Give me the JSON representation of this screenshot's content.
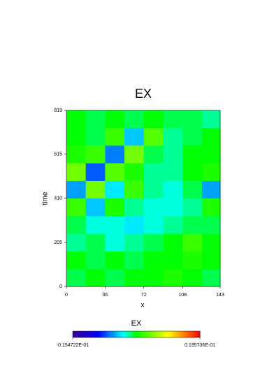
{
  "chart_data": {
    "type": "heatmap",
    "title": "EX",
    "xlabel": "x",
    "ylabel": "time",
    "xlim": [
      0,
      143
    ],
    "xticks": [
      0,
      36,
      72,
      108,
      143
    ],
    "ylim": [
      0,
      819
    ],
    "yticks": [
      0,
      205,
      410,
      615,
      819
    ],
    "xbins": [
      0,
      18,
      36,
      54,
      72,
      90,
      108,
      126,
      143
    ],
    "ybins": [
      0,
      82,
      164,
      246,
      328,
      410,
      492,
      574,
      656,
      738,
      819
    ],
    "z": [
      [
        0.001,
        0.002,
        0.001,
        0.002,
        0.002,
        0.003,
        0.002,
        0.001
      ],
      [
        0.002,
        0.001,
        0.002,
        0.001,
        0.002,
        0.002,
        0.003,
        0.002
      ],
      [
        0.0,
        0.001,
        -0.001,
        0.0,
        0.001,
        0.002,
        0.004,
        0.002
      ],
      [
        0.001,
        -0.001,
        -0.001,
        -0.002,
        -0.001,
        0.0,
        0.001,
        0.001
      ],
      [
        0.004,
        -0.003,
        0.003,
        0.0,
        -0.001,
        -0.001,
        0.0,
        0.003
      ],
      [
        -0.004,
        0.006,
        -0.002,
        0.004,
        0.0,
        -0.001,
        0.001,
        -0.004
      ],
      [
        0.006,
        -0.006,
        0.005,
        0.003,
        0.0,
        0.0,
        0.002,
        0.003
      ],
      [
        0.003,
        0.004,
        -0.005,
        0.006,
        0.001,
        0.0,
        0.002,
        0.002
      ],
      [
        0.002,
        0.001,
        0.004,
        -0.003,
        0.005,
        0.0,
        0.001,
        0.002
      ],
      [
        0.002,
        0.001,
        0.002,
        0.001,
        0.002,
        0.001,
        0.001,
        0.0
      ]
    ],
    "colorbar_title": "EX",
    "zlim": [
      {
        "value": -0.0154722,
        "label": "-0.154722E-01"
      },
      {
        "value": 0.0195736,
        "label": "0.195736E-01"
      }
    ]
  }
}
